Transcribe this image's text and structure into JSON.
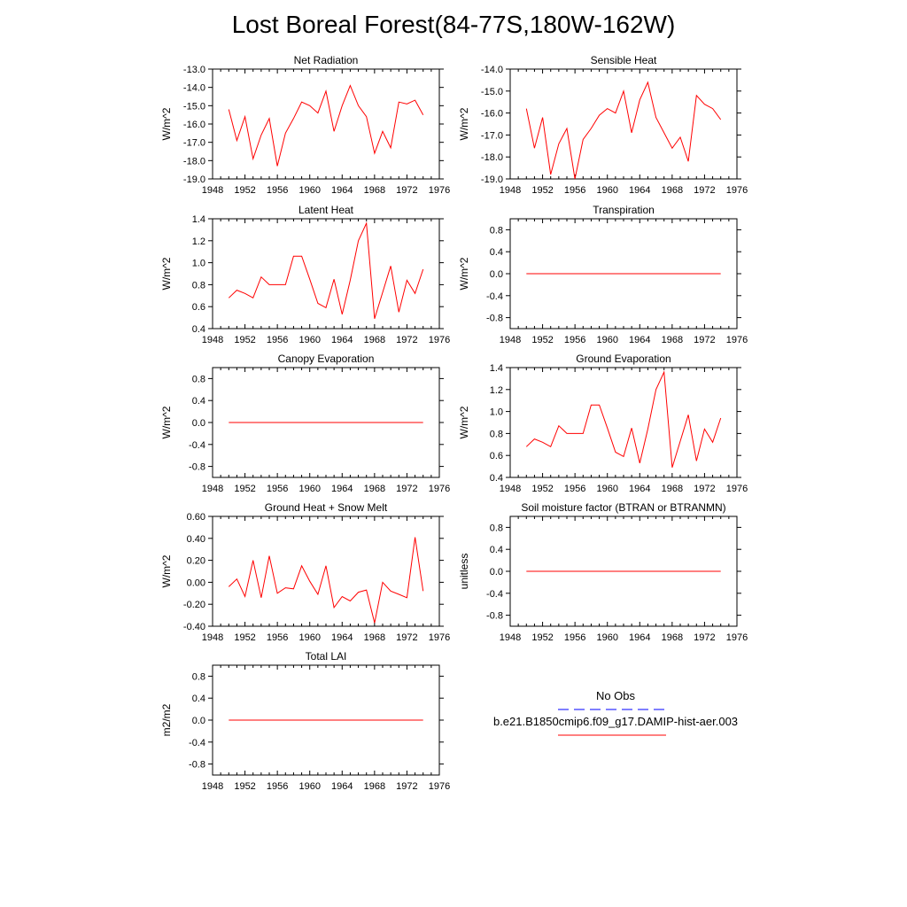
{
  "title": "Lost Boreal Forest(84-77S,180W-162W)",
  "line_color": "#ff0000",
  "obs_color": "#0000ff",
  "legend": {
    "obs_label": "No Obs",
    "model_label": "b.e21.B1850cmip6.f09_g17.DAMIP-hist-aer.003"
  },
  "chart_data": [
    {
      "type": "line",
      "title": "Net Radiation",
      "ylabel": "W/m^2",
      "xlim": [
        1948,
        1976
      ],
      "ylim": [
        -19,
        -13
      ],
      "xticks": [
        1948,
        1952,
        1956,
        1960,
        1964,
        1968,
        1972,
        1976
      ],
      "yticks": [
        -19,
        -18,
        -17,
        -16,
        -15,
        -14,
        -13
      ],
      "ytick_labels": [
        "-19.0",
        "-18.0",
        "-17.0",
        "-16.0",
        "-15.0",
        "-14.0",
        "-13.0"
      ],
      "x": [
        1950,
        1951,
        1952,
        1953,
        1954,
        1955,
        1956,
        1957,
        1958,
        1959,
        1960,
        1961,
        1962,
        1963,
        1964,
        1965,
        1966,
        1967,
        1968,
        1969,
        1970,
        1971,
        1972,
        1973,
        1974
      ],
      "y": [
        -15.2,
        -16.9,
        -15.6,
        -17.9,
        -16.6,
        -15.7,
        -18.3,
        -16.5,
        -15.7,
        -14.8,
        -15.0,
        -15.4,
        -14.2,
        -16.4,
        -15.0,
        -13.9,
        -15.0,
        -15.6,
        -17.6,
        -16.4,
        -17.3,
        -14.8,
        -14.9,
        -14.7,
        -15.5
      ]
    },
    {
      "type": "line",
      "title": "Sensible Heat",
      "ylabel": "W/m^2",
      "xlim": [
        1948,
        1976
      ],
      "ylim": [
        -19,
        -14
      ],
      "xticks": [
        1948,
        1952,
        1956,
        1960,
        1964,
        1968,
        1972,
        1976
      ],
      "yticks": [
        -19,
        -18,
        -17,
        -16,
        -15,
        -14
      ],
      "ytick_labels": [
        "-19.0",
        "-18.0",
        "-17.0",
        "-16.0",
        "-15.0",
        "-14.0"
      ],
      "x": [
        1950,
        1951,
        1952,
        1953,
        1954,
        1955,
        1956,
        1957,
        1958,
        1959,
        1960,
        1961,
        1962,
        1963,
        1964,
        1965,
        1966,
        1967,
        1968,
        1969,
        1970,
        1971,
        1972,
        1973,
        1974
      ],
      "y": [
        -15.8,
        -17.6,
        -16.2,
        -18.8,
        -17.4,
        -16.7,
        -19.0,
        -17.2,
        -16.7,
        -16.1,
        -15.8,
        -16.0,
        -15.0,
        -16.9,
        -15.4,
        -14.6,
        -16.2,
        -16.9,
        -17.6,
        -17.1,
        -18.2,
        -15.2,
        -15.6,
        -15.8,
        -16.3
      ]
    },
    {
      "type": "line",
      "title": "Latent Heat",
      "ylabel": "W/m^2",
      "xlim": [
        1948,
        1976
      ],
      "ylim": [
        0.4,
        1.4
      ],
      "xticks": [
        1948,
        1952,
        1956,
        1960,
        1964,
        1968,
        1972,
        1976
      ],
      "yticks": [
        0.4,
        0.6,
        0.8,
        1.0,
        1.2,
        1.4
      ],
      "ytick_labels": [
        "0.4",
        "0.6",
        "0.8",
        "1.0",
        "1.2",
        "1.4"
      ],
      "x": [
        1950,
        1951,
        1952,
        1953,
        1954,
        1955,
        1956,
        1957,
        1958,
        1959,
        1960,
        1961,
        1962,
        1963,
        1964,
        1965,
        1966,
        1967,
        1968,
        1969,
        1970,
        1971,
        1972,
        1973,
        1974
      ],
      "y": [
        0.68,
        0.75,
        0.72,
        0.68,
        0.87,
        0.8,
        0.8,
        0.8,
        1.06,
        1.06,
        0.85,
        0.63,
        0.59,
        0.85,
        0.53,
        0.84,
        1.2,
        1.36,
        0.49,
        0.73,
        0.97,
        0.55,
        0.84,
        0.72,
        0.94
      ]
    },
    {
      "type": "line",
      "title": "Transpiration",
      "ylabel": "W/m^2",
      "xlim": [
        1948,
        1976
      ],
      "ylim": [
        -1.0,
        1.0
      ],
      "xticks": [
        1948,
        1952,
        1956,
        1960,
        1964,
        1968,
        1972,
        1976
      ],
      "yticks": [
        -0.8,
        -0.4,
        0.0,
        0.4,
        0.8
      ],
      "ytick_labels": [
        "-0.8",
        "-0.4",
        "0.0",
        "0.4",
        "0.8"
      ],
      "x": [
        1950,
        1974
      ],
      "y": [
        0.0,
        0.0
      ]
    },
    {
      "type": "line",
      "title": "Canopy Evaporation",
      "ylabel": "W/m^2",
      "xlim": [
        1948,
        1976
      ],
      "ylim": [
        -1.0,
        1.0
      ],
      "xticks": [
        1948,
        1952,
        1956,
        1960,
        1964,
        1968,
        1972,
        1976
      ],
      "yticks": [
        -0.8,
        -0.4,
        0.0,
        0.4,
        0.8
      ],
      "ytick_labels": [
        "-0.8",
        "-0.4",
        "0.0",
        "0.4",
        "0.8"
      ],
      "x": [
        1950,
        1974
      ],
      "y": [
        0.0,
        0.0
      ]
    },
    {
      "type": "line",
      "title": "Ground Evaporation",
      "ylabel": "W/m^2",
      "xlim": [
        1948,
        1976
      ],
      "ylim": [
        0.4,
        1.4
      ],
      "xticks": [
        1948,
        1952,
        1956,
        1960,
        1964,
        1968,
        1972,
        1976
      ],
      "yticks": [
        0.4,
        0.6,
        0.8,
        1.0,
        1.2,
        1.4
      ],
      "ytick_labels": [
        "0.4",
        "0.6",
        "0.8",
        "1.0",
        "1.2",
        "1.4"
      ],
      "x": [
        1950,
        1951,
        1952,
        1953,
        1954,
        1955,
        1956,
        1957,
        1958,
        1959,
        1960,
        1961,
        1962,
        1963,
        1964,
        1965,
        1966,
        1967,
        1968,
        1969,
        1970,
        1971,
        1972,
        1973,
        1974
      ],
      "y": [
        0.68,
        0.75,
        0.72,
        0.68,
        0.87,
        0.8,
        0.8,
        0.8,
        1.06,
        1.06,
        0.85,
        0.63,
        0.59,
        0.85,
        0.53,
        0.84,
        1.2,
        1.36,
        0.49,
        0.73,
        0.97,
        0.55,
        0.84,
        0.72,
        0.94
      ]
    },
    {
      "type": "line",
      "title": "Ground Heat + Snow Melt",
      "ylabel": "W/m^2",
      "xlim": [
        1948,
        1976
      ],
      "ylim": [
        -0.4,
        0.6
      ],
      "xticks": [
        1948,
        1952,
        1956,
        1960,
        1964,
        1968,
        1972,
        1976
      ],
      "yticks": [
        -0.4,
        -0.2,
        0.0,
        0.2,
        0.4,
        0.6
      ],
      "ytick_labels": [
        "-0.40",
        "-0.20",
        "0.00",
        "0.20",
        "0.40",
        "0.60"
      ],
      "x": [
        1950,
        1951,
        1952,
        1953,
        1954,
        1955,
        1956,
        1957,
        1958,
        1959,
        1960,
        1961,
        1962,
        1963,
        1964,
        1965,
        1966,
        1967,
        1968,
        1969,
        1970,
        1971,
        1972,
        1973,
        1974
      ],
      "y": [
        -0.04,
        0.03,
        -0.13,
        0.2,
        -0.14,
        0.24,
        -0.1,
        -0.05,
        -0.06,
        0.15,
        0.01,
        -0.11,
        0.15,
        -0.23,
        -0.13,
        -0.17,
        -0.09,
        -0.07,
        -0.37,
        0.0,
        -0.08,
        -0.11,
        -0.14,
        0.41,
        -0.08
      ]
    },
    {
      "type": "line",
      "title": "Soil moisture factor (BTRAN or BTRANMN)",
      "ylabel": "unitless",
      "xlim": [
        1948,
        1976
      ],
      "ylim": [
        -1.0,
        1.0
      ],
      "xticks": [
        1948,
        1952,
        1956,
        1960,
        1964,
        1968,
        1972,
        1976
      ],
      "yticks": [
        -0.8,
        -0.4,
        0.0,
        0.4,
        0.8
      ],
      "ytick_labels": [
        "-0.8",
        "-0.4",
        "0.0",
        "0.4",
        "0.8"
      ],
      "x": [
        1950,
        1974
      ],
      "y": [
        0.0,
        0.0
      ]
    },
    {
      "type": "line",
      "title": "Total LAI",
      "ylabel": "m2/m2",
      "xlim": [
        1948,
        1976
      ],
      "ylim": [
        -1.0,
        1.0
      ],
      "xticks": [
        1948,
        1952,
        1956,
        1960,
        1964,
        1968,
        1972,
        1976
      ],
      "yticks": [
        -0.8,
        -0.4,
        0.0,
        0.4,
        0.8
      ],
      "ytick_labels": [
        "-0.8",
        "-0.4",
        "0.0",
        "0.4",
        "0.8"
      ],
      "x": [
        1950,
        1974
      ],
      "y": [
        0.0,
        0.0
      ]
    }
  ]
}
